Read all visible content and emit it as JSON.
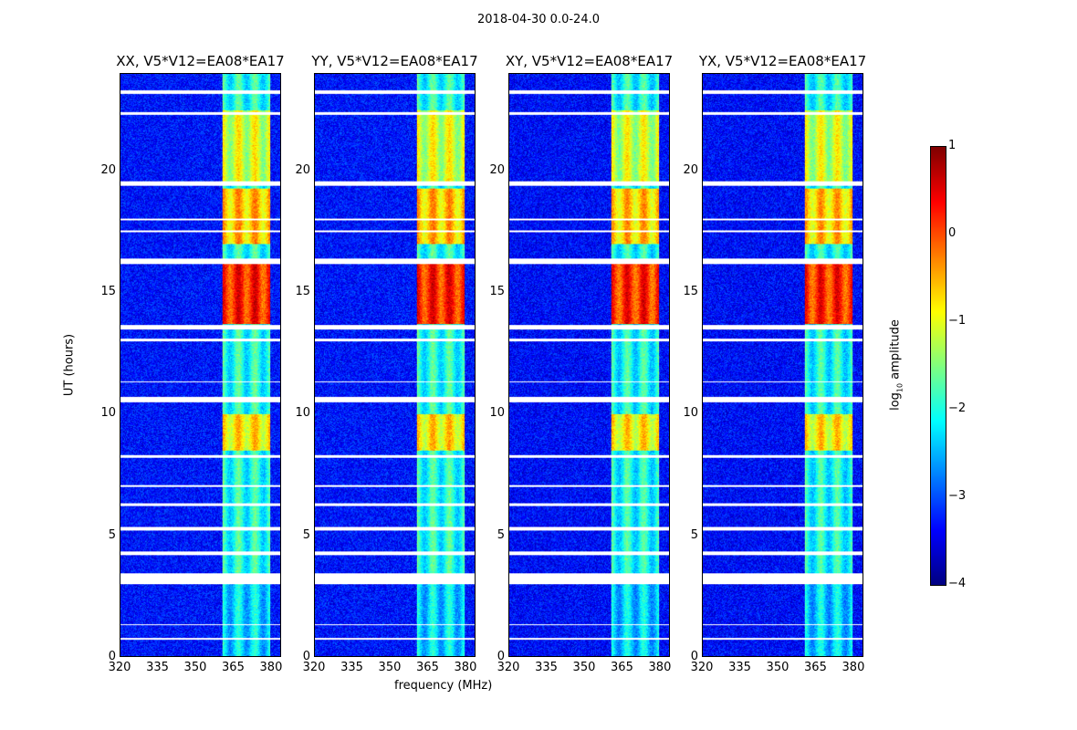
{
  "chart_data": {
    "type": "heatmap",
    "title": "2018-04-30 0.0-24.0",
    "xlabel": "frequency (MHz)",
    "ylabel": "UT (hours)",
    "xlim": [
      320,
      384
    ],
    "ylim": [
      0,
      24
    ],
    "xticks": [
      "320",
      "335",
      "350",
      "365",
      "380"
    ],
    "yticks": [
      "0",
      "5",
      "10",
      "15",
      "20"
    ],
    "colorbar": {
      "label_main": "log",
      "label_sub": "10",
      "label_tail": " amplitude",
      "range": [
        -4,
        1
      ],
      "ticks": [
        "1",
        "0",
        "−1",
        "−2",
        "−3",
        "−4"
      ],
      "colormap": "jet"
    },
    "panels": [
      {
        "title": "XX, V5*V12=EA08*EA17"
      },
      {
        "title": "YY, V5*V12=EA08*EA17"
      },
      {
        "title": "XY, V5*V12=EA08*EA17"
      },
      {
        "title": "YX, V5*V12=EA08*EA17"
      }
    ],
    "background_level": -3.3,
    "rfi_band_mhz": [
      360.5,
      380
    ],
    "rfi_strong_intervals_ut": [
      [
        13.7,
        16.3,
        0.2
      ],
      [
        8.5,
        10,
        -0.8
      ],
      [
        17,
        19.3,
        -0.6
      ],
      [
        19.5,
        22.5,
        -1.1
      ]
    ],
    "flagged_intervals_ut": [
      [
        23.2,
        23.35
      ],
      [
        22.35,
        22.45
      ],
      [
        19.4,
        19.6
      ],
      [
        16.2,
        16.4
      ],
      [
        13.5,
        13.65
      ],
      [
        13.0,
        13.1
      ],
      [
        10.5,
        10.7
      ],
      [
        8.2,
        8.3
      ],
      [
        6.2,
        6.3
      ],
      [
        5.2,
        5.35
      ],
      [
        4.2,
        4.35
      ],
      [
        3.0,
        3.45
      ],
      [
        11.3,
        11.35
      ],
      [
        7.0,
        7.05
      ],
      [
        17.5,
        17.55
      ],
      [
        18.0,
        18.05
      ],
      [
        1.3,
        1.35
      ],
      [
        0.7,
        0.75
      ]
    ]
  }
}
